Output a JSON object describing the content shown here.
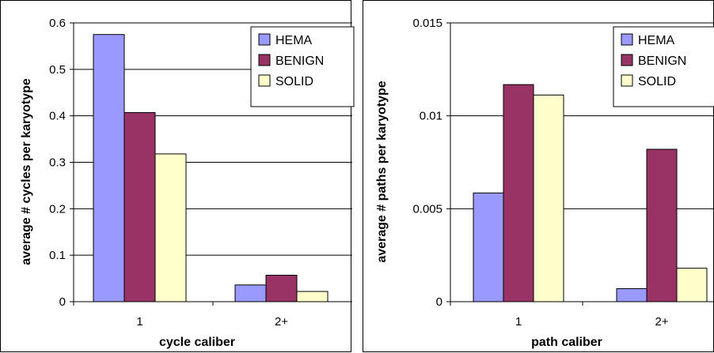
{
  "chart_data": [
    {
      "type": "bar",
      "categories": [
        "1",
        "2+"
      ],
      "series": [
        {
          "name": "HEMA",
          "values": [
            0.575,
            0.036
          ],
          "color": "#9999ff"
        },
        {
          "name": "BENIGN",
          "values": [
            0.407,
            0.057
          ],
          "color": "#993366"
        },
        {
          "name": "SOLID",
          "values": [
            0.318,
            0.022
          ],
          "color": "#ffffcc"
        }
      ],
      "title": "",
      "xlabel": "cycle caliber",
      "ylabel": "average # cycles per karyotype",
      "ylim": [
        0,
        0.6
      ],
      "yticks": [
        "0",
        "0.1",
        "0.2",
        "0.3",
        "0.4",
        "0.5",
        "0.6"
      ],
      "grid": true,
      "legend": "top-right"
    },
    {
      "type": "bar",
      "categories": [
        "1",
        "2+"
      ],
      "series": [
        {
          "name": "HEMA",
          "values": [
            0.00585,
            0.0007
          ],
          "color": "#9999ff"
        },
        {
          "name": "BENIGN",
          "values": [
            0.01168,
            0.0082
          ],
          "color": "#993366"
        },
        {
          "name": "SOLID",
          "values": [
            0.01112,
            0.0018
          ],
          "color": "#ffffcc"
        }
      ],
      "title": "",
      "xlabel": "path caliber",
      "ylabel": "average # paths per karyotype",
      "ylim": [
        0,
        0.015
      ],
      "yticks": [
        "0",
        "0.005",
        "0.01",
        "0.015"
      ],
      "grid": true,
      "legend": "top-right"
    }
  ]
}
